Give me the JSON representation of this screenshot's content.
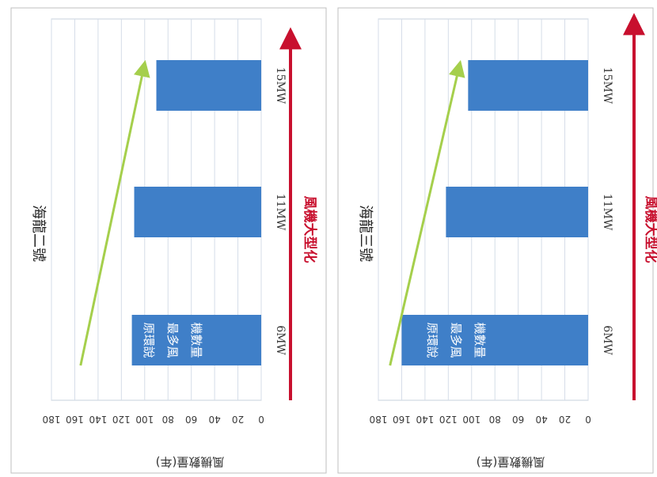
{
  "colors": {
    "bar": "#3f7fc8",
    "green_arrow": "#a5cf4c",
    "red_arrow": "#c8102e",
    "grid": "#d5dde8"
  },
  "red_arrow_label": "風機大型化",
  "chart_data": [
    {
      "type": "bar",
      "title": "海龍二號",
      "ylabel": "風機數量(年)",
      "categories": [
        "6MW",
        "11MW",
        "15MW"
      ],
      "values": [
        111,
        109,
        90
      ],
      "ylim": [
        0,
        180
      ],
      "yticks": [
        0,
        20,
        40,
        60,
        80,
        100,
        120,
        140,
        160,
        180
      ],
      "bar_annotation": [
        "原環說",
        "最多風",
        "機數量"
      ],
      "trend_arrow": {
        "from": 155,
        "to": 100
      },
      "grid": true
    },
    {
      "type": "bar",
      "title": "海龍三號",
      "ylabel": "風機數量(年)",
      "categories": [
        "6MW",
        "11MW",
        "15MW"
      ],
      "values": [
        160,
        122,
        103
      ],
      "ylim": [
        0,
        180
      ],
      "yticks": [
        0,
        20,
        40,
        60,
        80,
        100,
        120,
        140,
        160,
        180
      ],
      "bar_annotation": [
        "原環說",
        "最多風",
        "機數量"
      ],
      "trend_arrow": {
        "from": 170,
        "to": 110
      },
      "grid": true
    }
  ]
}
